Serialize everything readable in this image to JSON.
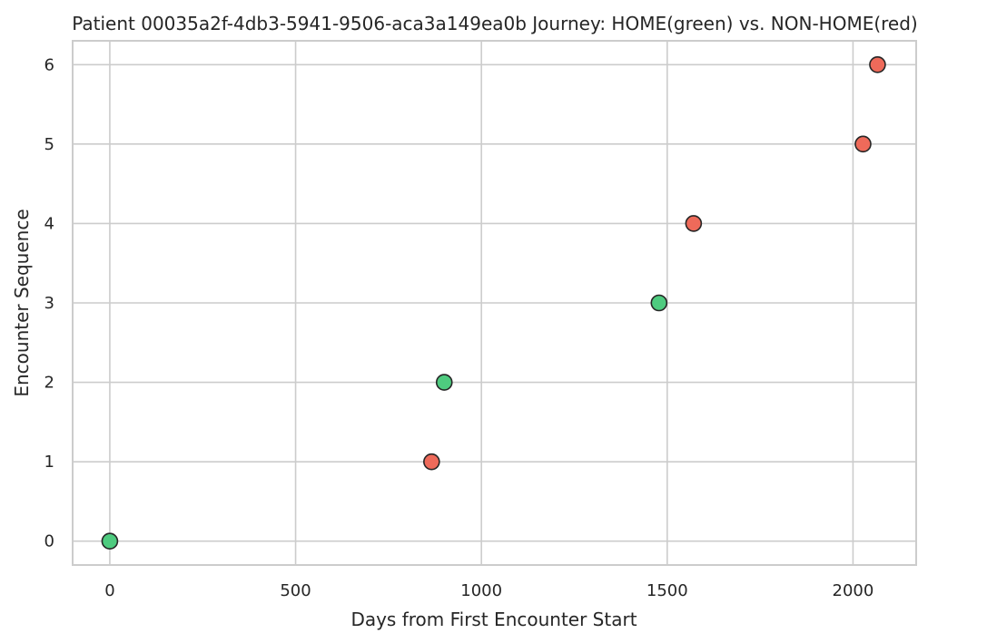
{
  "chart_data": {
    "type": "scatter",
    "title": "Patient 00035a2f-4db3-5941-9506-aca3a149ea0b Journey: HOME(green) vs. NON-HOME(red)",
    "xlabel": "Days from First Encounter Start",
    "ylabel": "Encounter Sequence",
    "xlim": [
      -100,
      2170
    ],
    "ylim": [
      -0.3,
      6.3
    ],
    "xticks": [
      0,
      500,
      1000,
      1500,
      2000
    ],
    "yticks": [
      0,
      1,
      2,
      3,
      4,
      5,
      6
    ],
    "grid": true,
    "colors": {
      "HOME": "#4ecb7f",
      "NON-HOME": "#ee6a5a"
    },
    "points": [
      {
        "x": 0,
        "y": 0,
        "category": "HOME"
      },
      {
        "x": 866,
        "y": 1,
        "category": "NON-HOME"
      },
      {
        "x": 900,
        "y": 2,
        "category": "HOME"
      },
      {
        "x": 1478,
        "y": 3,
        "category": "HOME"
      },
      {
        "x": 1571,
        "y": 4,
        "category": "NON-HOME"
      },
      {
        "x": 2027,
        "y": 5,
        "category": "NON-HOME"
      },
      {
        "x": 2066,
        "y": 6,
        "category": "NON-HOME"
      }
    ]
  }
}
